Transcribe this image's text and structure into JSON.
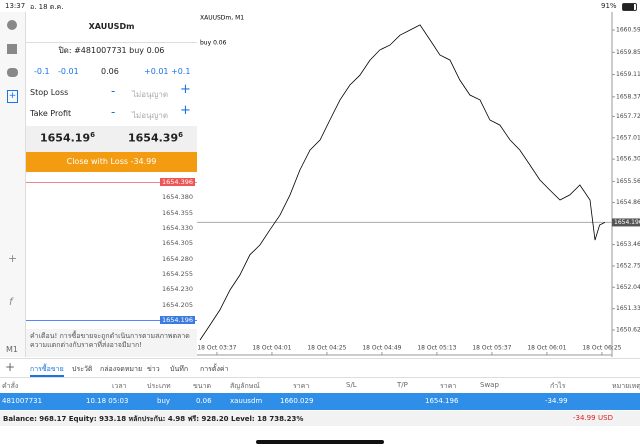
{
  "status": {
    "time": "13:37",
    "date": "อ. 18 ต.ค.",
    "battery": "91%"
  },
  "toolbar": {
    "timeframe": "M1"
  },
  "order": {
    "symbol": "XAUUSDm",
    "ticket": "ปิด: #481007731 buy 0.06",
    "volume_steps": [
      "-0.1",
      "-0.01",
      "0.06",
      "+0.01",
      "+0.1"
    ],
    "stop_loss_label": "Stop Loss",
    "stop_loss_value": "ไม่อนุญาต",
    "take_profit_label": "Take Profit",
    "take_profit_value": "ไม่อนุญาต",
    "bid": {
      "main": "1654.19",
      "sup": "6"
    },
    "ask": {
      "main": "1654.39",
      "sup": "6"
    },
    "close_button": "Close with Loss -34.99",
    "ladder": [
      "1654.396",
      "1654.380",
      "1654.355",
      "1654.330",
      "1654.305",
      "1654.280",
      "1654.255",
      "1654.230",
      "1654.205",
      "1654.196"
    ],
    "warning": "คำเตือน! การซื้อขายจะถูกดำเนินการตามสภาพตลาด ความแตกต่างกับราคาที่ส่งอาจมีมาก!"
  },
  "price_chart": {
    "type": "line",
    "label": "XAUUSDm, M1",
    "order_label": "buy 0.06",
    "x": [
      -7.4,
      -3,
      1.3,
      5.7,
      10,
      14.4,
      18.8,
      23.1,
      27.5,
      31.9,
      36.2,
      40.6,
      45,
      49.3,
      53.7,
      58,
      62.4,
      66.8,
      71.1,
      75.5,
      79.9,
      84.2,
      88.6,
      93,
      97.3,
      101.7,
      106,
      110.4,
      114.8,
      119.1,
      123.5,
      127.9,
      132.2,
      136.6,
      140.9,
      145.3,
      149.7,
      154,
      158.4,
      162.8,
      165,
      167,
      169.3
    ],
    "values": [
      1650.29,
      1650.79,
      1651.29,
      1651.95,
      1652.45,
      1653.12,
      1653.45,
      1653.95,
      1654.44,
      1655.11,
      1655.94,
      1656.6,
      1656.94,
      1657.6,
      1658.27,
      1658.76,
      1659.09,
      1659.59,
      1659.93,
      1660.09,
      1660.42,
      1660.59,
      1660.76,
      1660.26,
      1659.76,
      1659.59,
      1658.93,
      1658.43,
      1658.27,
      1657.6,
      1657.43,
      1656.94,
      1656.6,
      1656.1,
      1655.61,
      1655.27,
      1654.94,
      1655.11,
      1655.44,
      1654.94,
      1653.61,
      1654.11,
      1654.196
    ],
    "color": "#000000",
    "current_price": 1654.196,
    "xlim": [
      -8.7,
      172.4
    ],
    "ylim": [
      1649.79,
      1661.19
    ],
    "xticks": [
      {
        "value": 0,
        "label": "18 Oct 03:37"
      },
      {
        "value": 24,
        "label": "18 Oct 04:01"
      },
      {
        "value": 48,
        "label": "18 Oct 04:25"
      },
      {
        "value": 72,
        "label": "18 Oct 04:49"
      },
      {
        "value": 96,
        "label": "18 Oct 05:13"
      },
      {
        "value": 120,
        "label": "18 Oct 05:37"
      },
      {
        "value": 144,
        "label": "18 Oct 06:01"
      },
      {
        "value": 168,
        "label": "18 Oct 06:25"
      }
    ],
    "yticks": [
      {
        "value": 1660.59,
        "label": "1660.590"
      },
      {
        "value": 1659.85,
        "label": "1659.850"
      },
      {
        "value": 1659.11,
        "label": "1659.110"
      },
      {
        "value": 1658.37,
        "label": "1658.370"
      },
      {
        "value": 1657.72,
        "label": "1657.720"
      },
      {
        "value": 1657.01,
        "label": "1657.010"
      },
      {
        "value": 1656.3,
        "label": "1656.300"
      },
      {
        "value": 1655.56,
        "label": "1655.560"
      },
      {
        "value": 1654.86,
        "label": "1654.860"
      },
      {
        "value": 1653.46,
        "label": "1653.460"
      },
      {
        "value": 1652.75,
        "label": "1652.750"
      },
      {
        "value": 1652.04,
        "label": "1652.040"
      },
      {
        "value": 1651.33,
        "label": "1651.330"
      },
      {
        "value": 1650.62,
        "label": "1650.620"
      }
    ]
  },
  "tabs": [
    "การซื้อขาย",
    "ประวัติ",
    "กล่องจดหมาย",
    "ข่าว",
    "บันทึก",
    "การตั้งค่า"
  ],
  "table": {
    "headers": [
      "คำสั่ง",
      "เวลา",
      "ประเภท",
      "ขนาด",
      "สัญลักษณ์",
      "ราคา",
      "S/L",
      "T/P",
      "ราคา",
      "Swap",
      "กำไร",
      "หมายเหตุ"
    ],
    "row": {
      "order": "481007731",
      "time": "10.18 05:03",
      "type": "buy",
      "size": "0.06",
      "symbol": "xauusdm",
      "open_price": "1660.029",
      "price": "1654.196",
      "profit": "-34.99"
    }
  },
  "footer": {
    "summary": "Balance: 968.17 Equity: 933.18 หลักประกัน: 4.98 ฟรี: 928.20 Level: 18 738.23%",
    "profit": "-34.99",
    "currency": "USD"
  }
}
